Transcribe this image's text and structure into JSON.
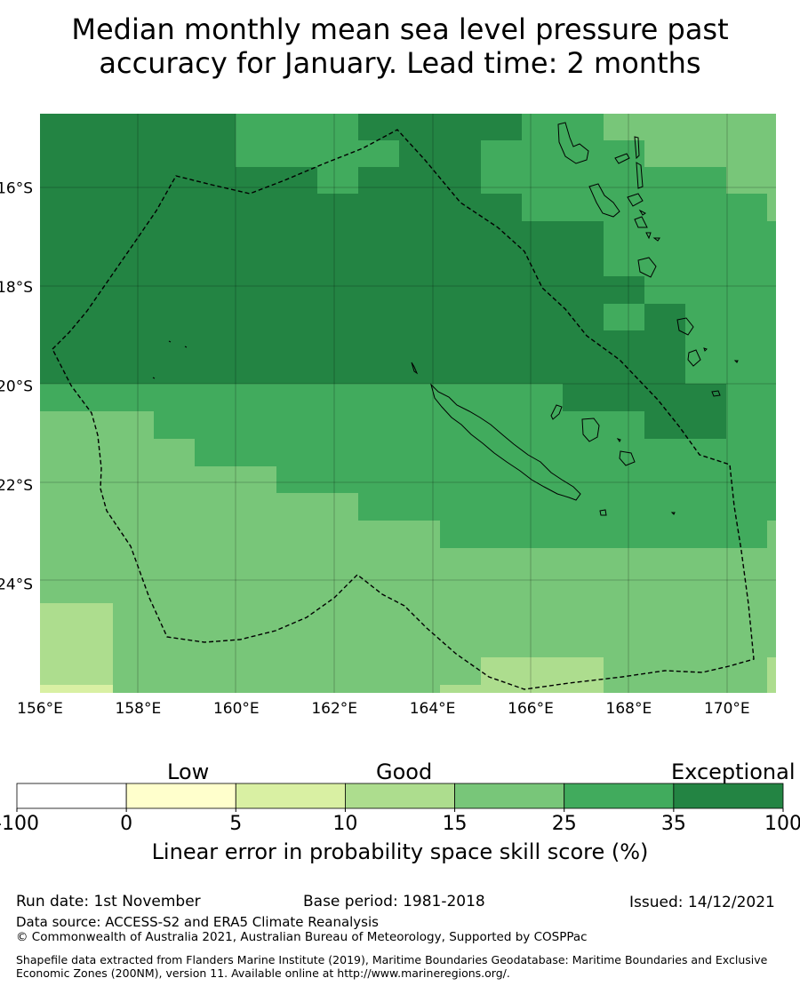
{
  "title": {
    "line1": "Median monthly mean sea level pressure past",
    "line2": "accuracy for January. Lead time: 2 months"
  },
  "map": {
    "lon_range": [
      156,
      171
    ],
    "lat_range": [
      -26.2,
      -14.5
    ],
    "x_ticks": [
      "156°E",
      "158°E",
      "160°E",
      "162°E",
      "164°E",
      "166°E",
      "168°E",
      "170°E"
    ],
    "y_ticks": [
      "16°S",
      "18°S",
      "20°S",
      "22°S",
      "24°S"
    ],
    "colors": {
      "c15_25": "#78c679",
      "c25_35": "#41ab5d",
      "c35_100": "#238443",
      "c10_15": "#addd8e",
      "c5_10": "#d9f0a3",
      "c0_5": "#ffffcc"
    }
  },
  "colorbar": {
    "categories": [
      "Low",
      "Good",
      "Exceptional"
    ],
    "ticks": [
      "-100",
      "0",
      "5",
      "10",
      "15",
      "25",
      "35",
      "100"
    ],
    "colors": [
      "#ffffff",
      "#ffffcc",
      "#d9f0a3",
      "#addd8e",
      "#78c679",
      "#41ab5d",
      "#238443"
    ],
    "label": "Linear error in probability space skill score (%)"
  },
  "footer": {
    "run_date": "Run date: 1st November",
    "base_period": "Base period: 1981-2018",
    "issued": "Issued: 14/12/2021",
    "data_source": "Data source: ACCESS-S2 and ERA5 Climate Reanalysis",
    "copyright": "© Commonwealth of Australia 2021, Australian Bureau of Meteorology, Supported by COSPPac",
    "shapefile": "Shapefile data extracted from Flanders Marine Institute (2019), Maritime Boundaries Geodatabase: Maritime Boundaries and Exclusive Economic Zones (200NM), version 11. Available online at http://www.marineregions.org/."
  }
}
